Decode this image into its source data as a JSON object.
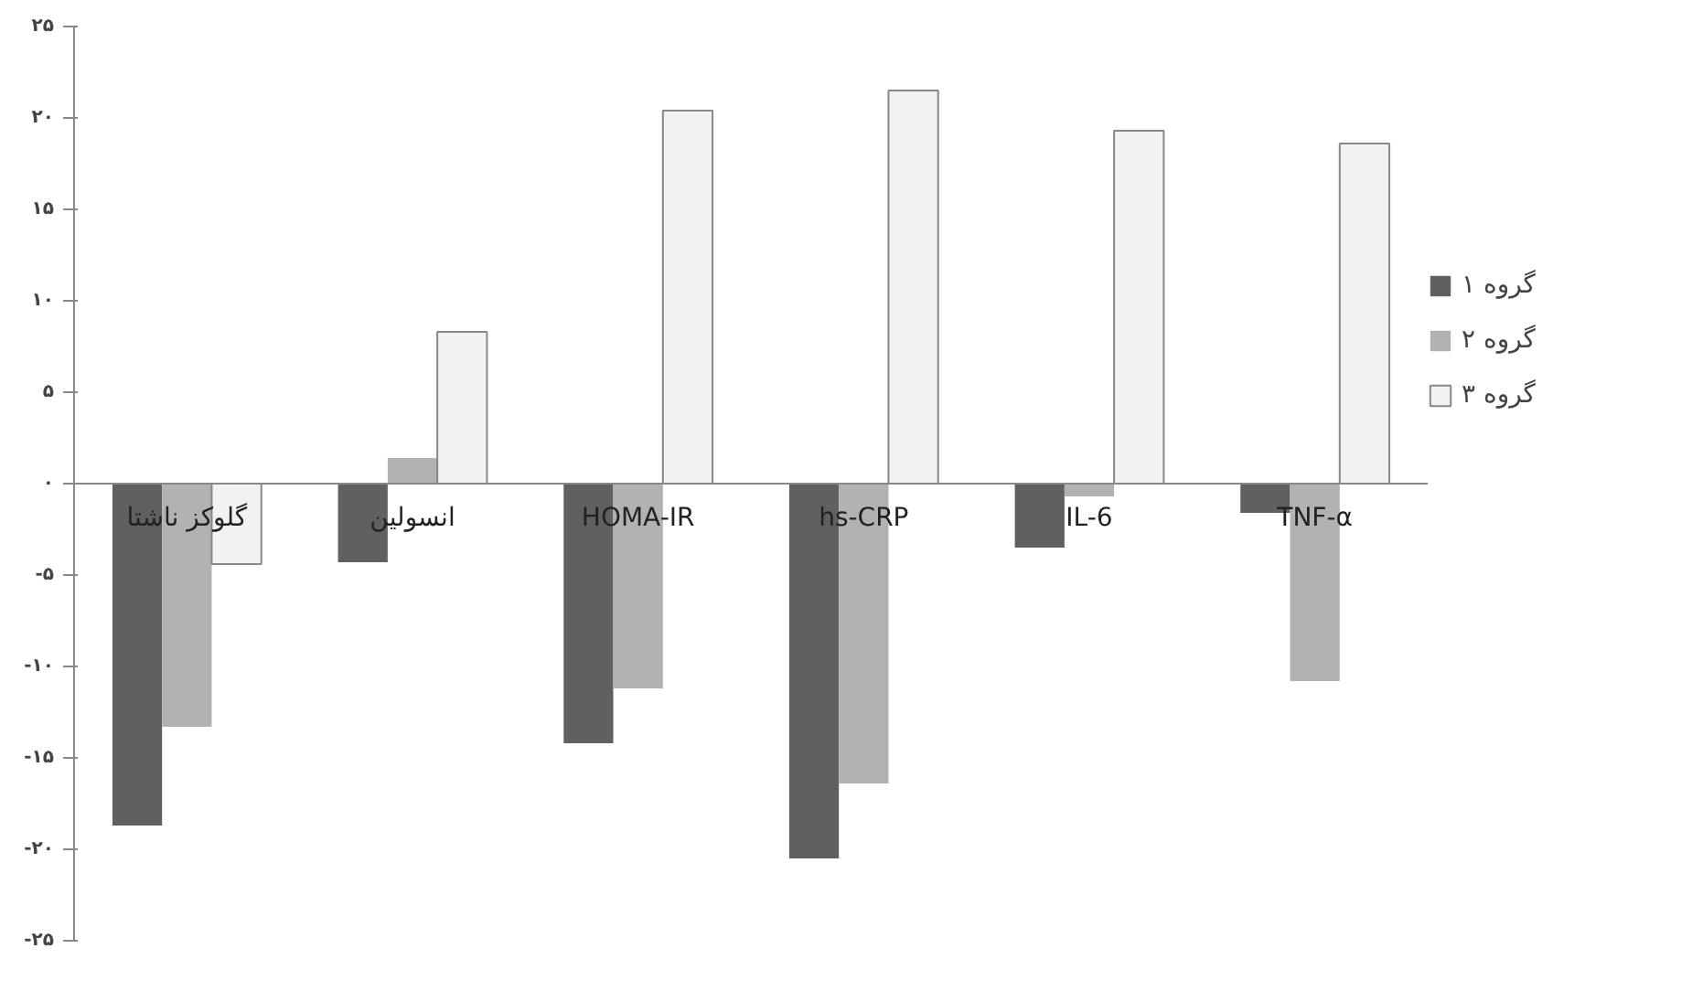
{
  "chart_data": {
    "type": "bar",
    "categories": [
      "گلوکز ناشتا",
      "انسولین",
      "HOMA-IR",
      "hs-CRP",
      "IL-6",
      "TNF-α"
    ],
    "series": [
      {
        "name": "گروه ۱",
        "color": "#606060",
        "values": [
          -18.7,
          -4.3,
          -14.2,
          -20.5,
          -3.5,
          -1.6
        ]
      },
      {
        "name": "گروه ۲",
        "color": "#b2b2b2",
        "values": [
          -13.3,
          1.4,
          -11.2,
          -16.4,
          -0.7,
          -10.8
        ]
      },
      {
        "name": "گروه ۳",
        "color": "#f2f2f2",
        "values": [
          -4.4,
          8.3,
          20.4,
          21.5,
          19.3,
          18.6
        ]
      }
    ],
    "ylim": [
      -25,
      25
    ],
    "yticks": [
      {
        "value": 25,
        "label": "۲۵"
      },
      {
        "value": 20,
        "label": "۲۰"
      },
      {
        "value": 15,
        "label": "۱۵"
      },
      {
        "value": 10,
        "label": "۱۰"
      },
      {
        "value": 5,
        "label": "۵"
      },
      {
        "value": 0,
        "label": "۰"
      },
      {
        "value": -5,
        "label": "-۵"
      },
      {
        "value": -10,
        "label": "-۱۰"
      },
      {
        "value": -15,
        "label": "-۱۵"
      },
      {
        "value": -20,
        "label": "-۲۰"
      },
      {
        "value": -25,
        "label": "-۲۵"
      }
    ],
    "grid": false,
    "legend": "right"
  }
}
